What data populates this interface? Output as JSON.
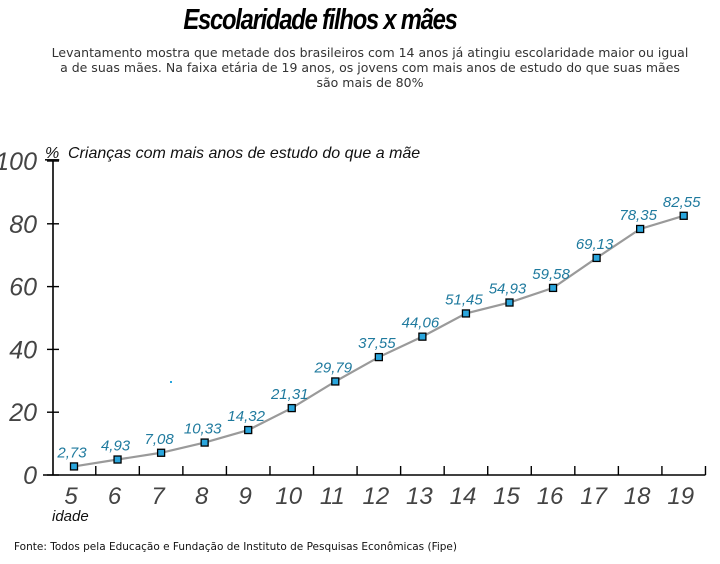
{
  "header": {
    "title": "Escolaridade filhos x mães",
    "subtitle_lines": [
      "Levantamento mostra que metade dos brasileiros com 14 anos já atingiu escolaridade maior ou igual",
      "a de suas mães. Na faixa etária de 19 anos, os jovens com mais anos de estudo do que suas mães",
      "são mais de 80%"
    ]
  },
  "footer": {
    "source": "Fonte: Todos pela Educação e Fundação de Instituto de Pesquisas Econômicas (Fipe)"
  },
  "colors": {
    "line": "#9a9a9a",
    "marker_fill": "#2aa6dd",
    "marker_stroke": "#000000",
    "data_label": "#1f7a9e",
    "axis": "#000000"
  },
  "chart_data": {
    "type": "line",
    "title": "Escolaridade filhos x mães",
    "ylabel_unit": "%",
    "ylabel": "Crianças com mais anos de estudo do que a mãe",
    "xlabel": "idade",
    "categories": [
      "5",
      "6",
      "7",
      "8",
      "9",
      "10",
      "11",
      "12",
      "13",
      "14",
      "15",
      "16",
      "17",
      "18",
      "19"
    ],
    "series": [
      {
        "name": "Crianças com mais anos de estudo do que a mãe",
        "values": [
          2.73,
          4.93,
          7.08,
          10.33,
          14.32,
          21.31,
          29.79,
          37.55,
          44.06,
          51.45,
          54.93,
          59.58,
          69.13,
          78.35,
          82.55
        ],
        "value_labels": [
          "2,73",
          "4,93",
          "7,08",
          "10,33",
          "14,32",
          "21,31",
          "29,79",
          "37,55",
          "44,06",
          "51,45",
          "54,93",
          "59,58",
          "69,13",
          "78,35",
          "82,55"
        ]
      }
    ],
    "yticks": [
      0,
      20,
      40,
      60,
      80,
      100
    ],
    "ylim": [
      0,
      100
    ],
    "grid": false,
    "legend": "none"
  }
}
